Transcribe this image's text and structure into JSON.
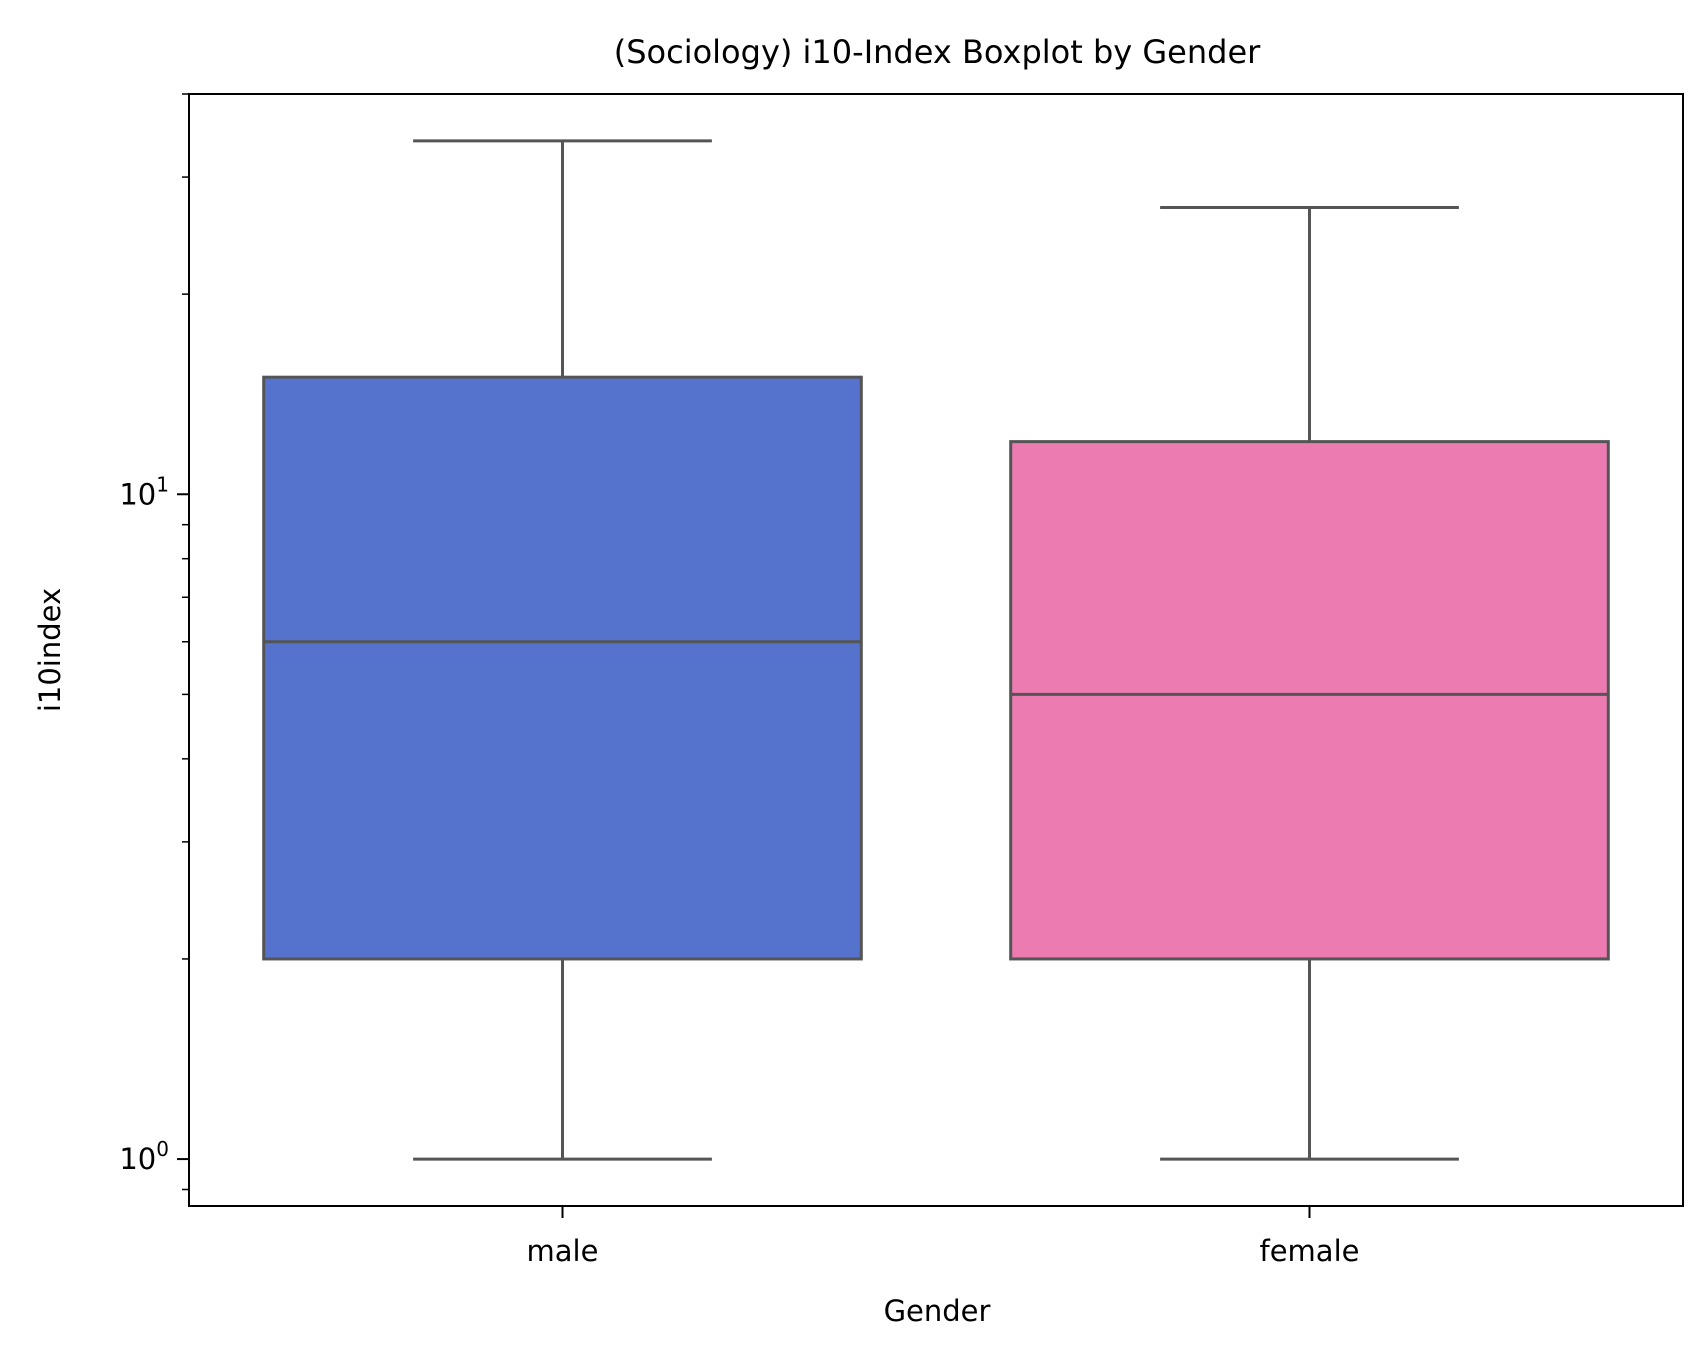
{
  "chart_data": {
    "type": "boxplot",
    "title": "(Sociology) i10-Index Boxplot by Gender",
    "xlabel": "Gender",
    "ylabel": "i10index",
    "yscale": "log",
    "ylim": [
      0.85,
      40
    ],
    "grid": false,
    "legend": "none",
    "categories": [
      "male",
      "female"
    ],
    "yticks": [
      {
        "value": 1,
        "base": "10",
        "exp": "0"
      },
      {
        "value": 10,
        "base": "10",
        "exp": "1"
      }
    ],
    "boxes": [
      {
        "category": "male",
        "whisker_low": 1,
        "q1": 2,
        "median": 6,
        "q3": 15,
        "whisker_high": 34,
        "color": "#5573cc"
      },
      {
        "category": "female",
        "whisker_low": 1,
        "q1": 2,
        "median": 5,
        "q3": 12,
        "whisker_high": 27,
        "color": "#ec7bb1"
      }
    ],
    "line_color": "#555555"
  }
}
